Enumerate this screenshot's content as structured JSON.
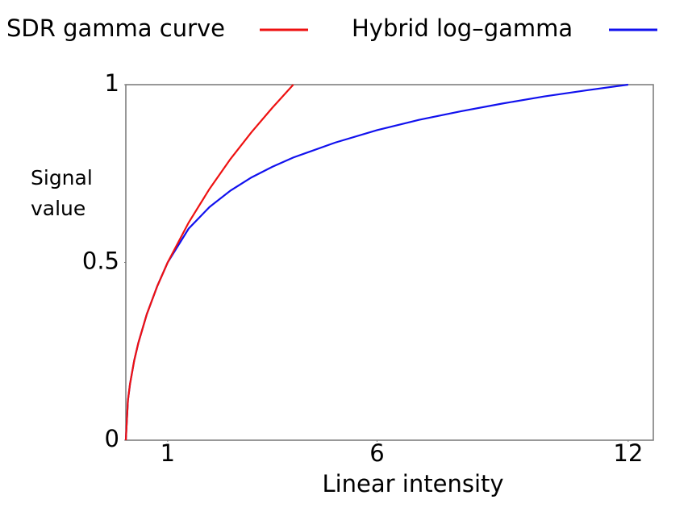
{
  "chart_data": {
    "type": "line",
    "x": [
      0,
      0.05,
      0.1,
      0.2,
      0.3,
      0.5,
      0.75,
      1,
      1.5,
      2,
      2.5,
      3,
      3.5,
      4,
      5,
      6,
      7,
      8,
      9,
      10,
      11,
      12
    ],
    "series": [
      {
        "name": "SDR gamma curve",
        "color": "#ee1111",
        "values": [
          0,
          0.112,
          0.158,
          0.224,
          0.274,
          0.354,
          0.433,
          0.5,
          0.612,
          0.707,
          0.791,
          0.866,
          0.935,
          1,
          null,
          null,
          null,
          null,
          null,
          null,
          null,
          null
        ]
      },
      {
        "name": "Hybrid log–gamma",
        "color": "#1111ee",
        "values": [
          0,
          0.112,
          0.158,
          0.224,
          0.274,
          0.354,
          0.433,
          0.5,
          0.595,
          0.656,
          0.702,
          0.739,
          0.769,
          0.795,
          0.837,
          0.872,
          0.901,
          0.925,
          0.947,
          0.967,
          0.984,
          1
        ]
      }
    ],
    "x_label": "Linear intensity",
    "y_label": "Signal value",
    "xlim": [
      0,
      12.6
    ],
    "ylim": [
      0,
      1
    ],
    "xticks": [
      1,
      6,
      12
    ],
    "yticks": [
      0,
      0.5,
      1
    ],
    "grid": false
  }
}
